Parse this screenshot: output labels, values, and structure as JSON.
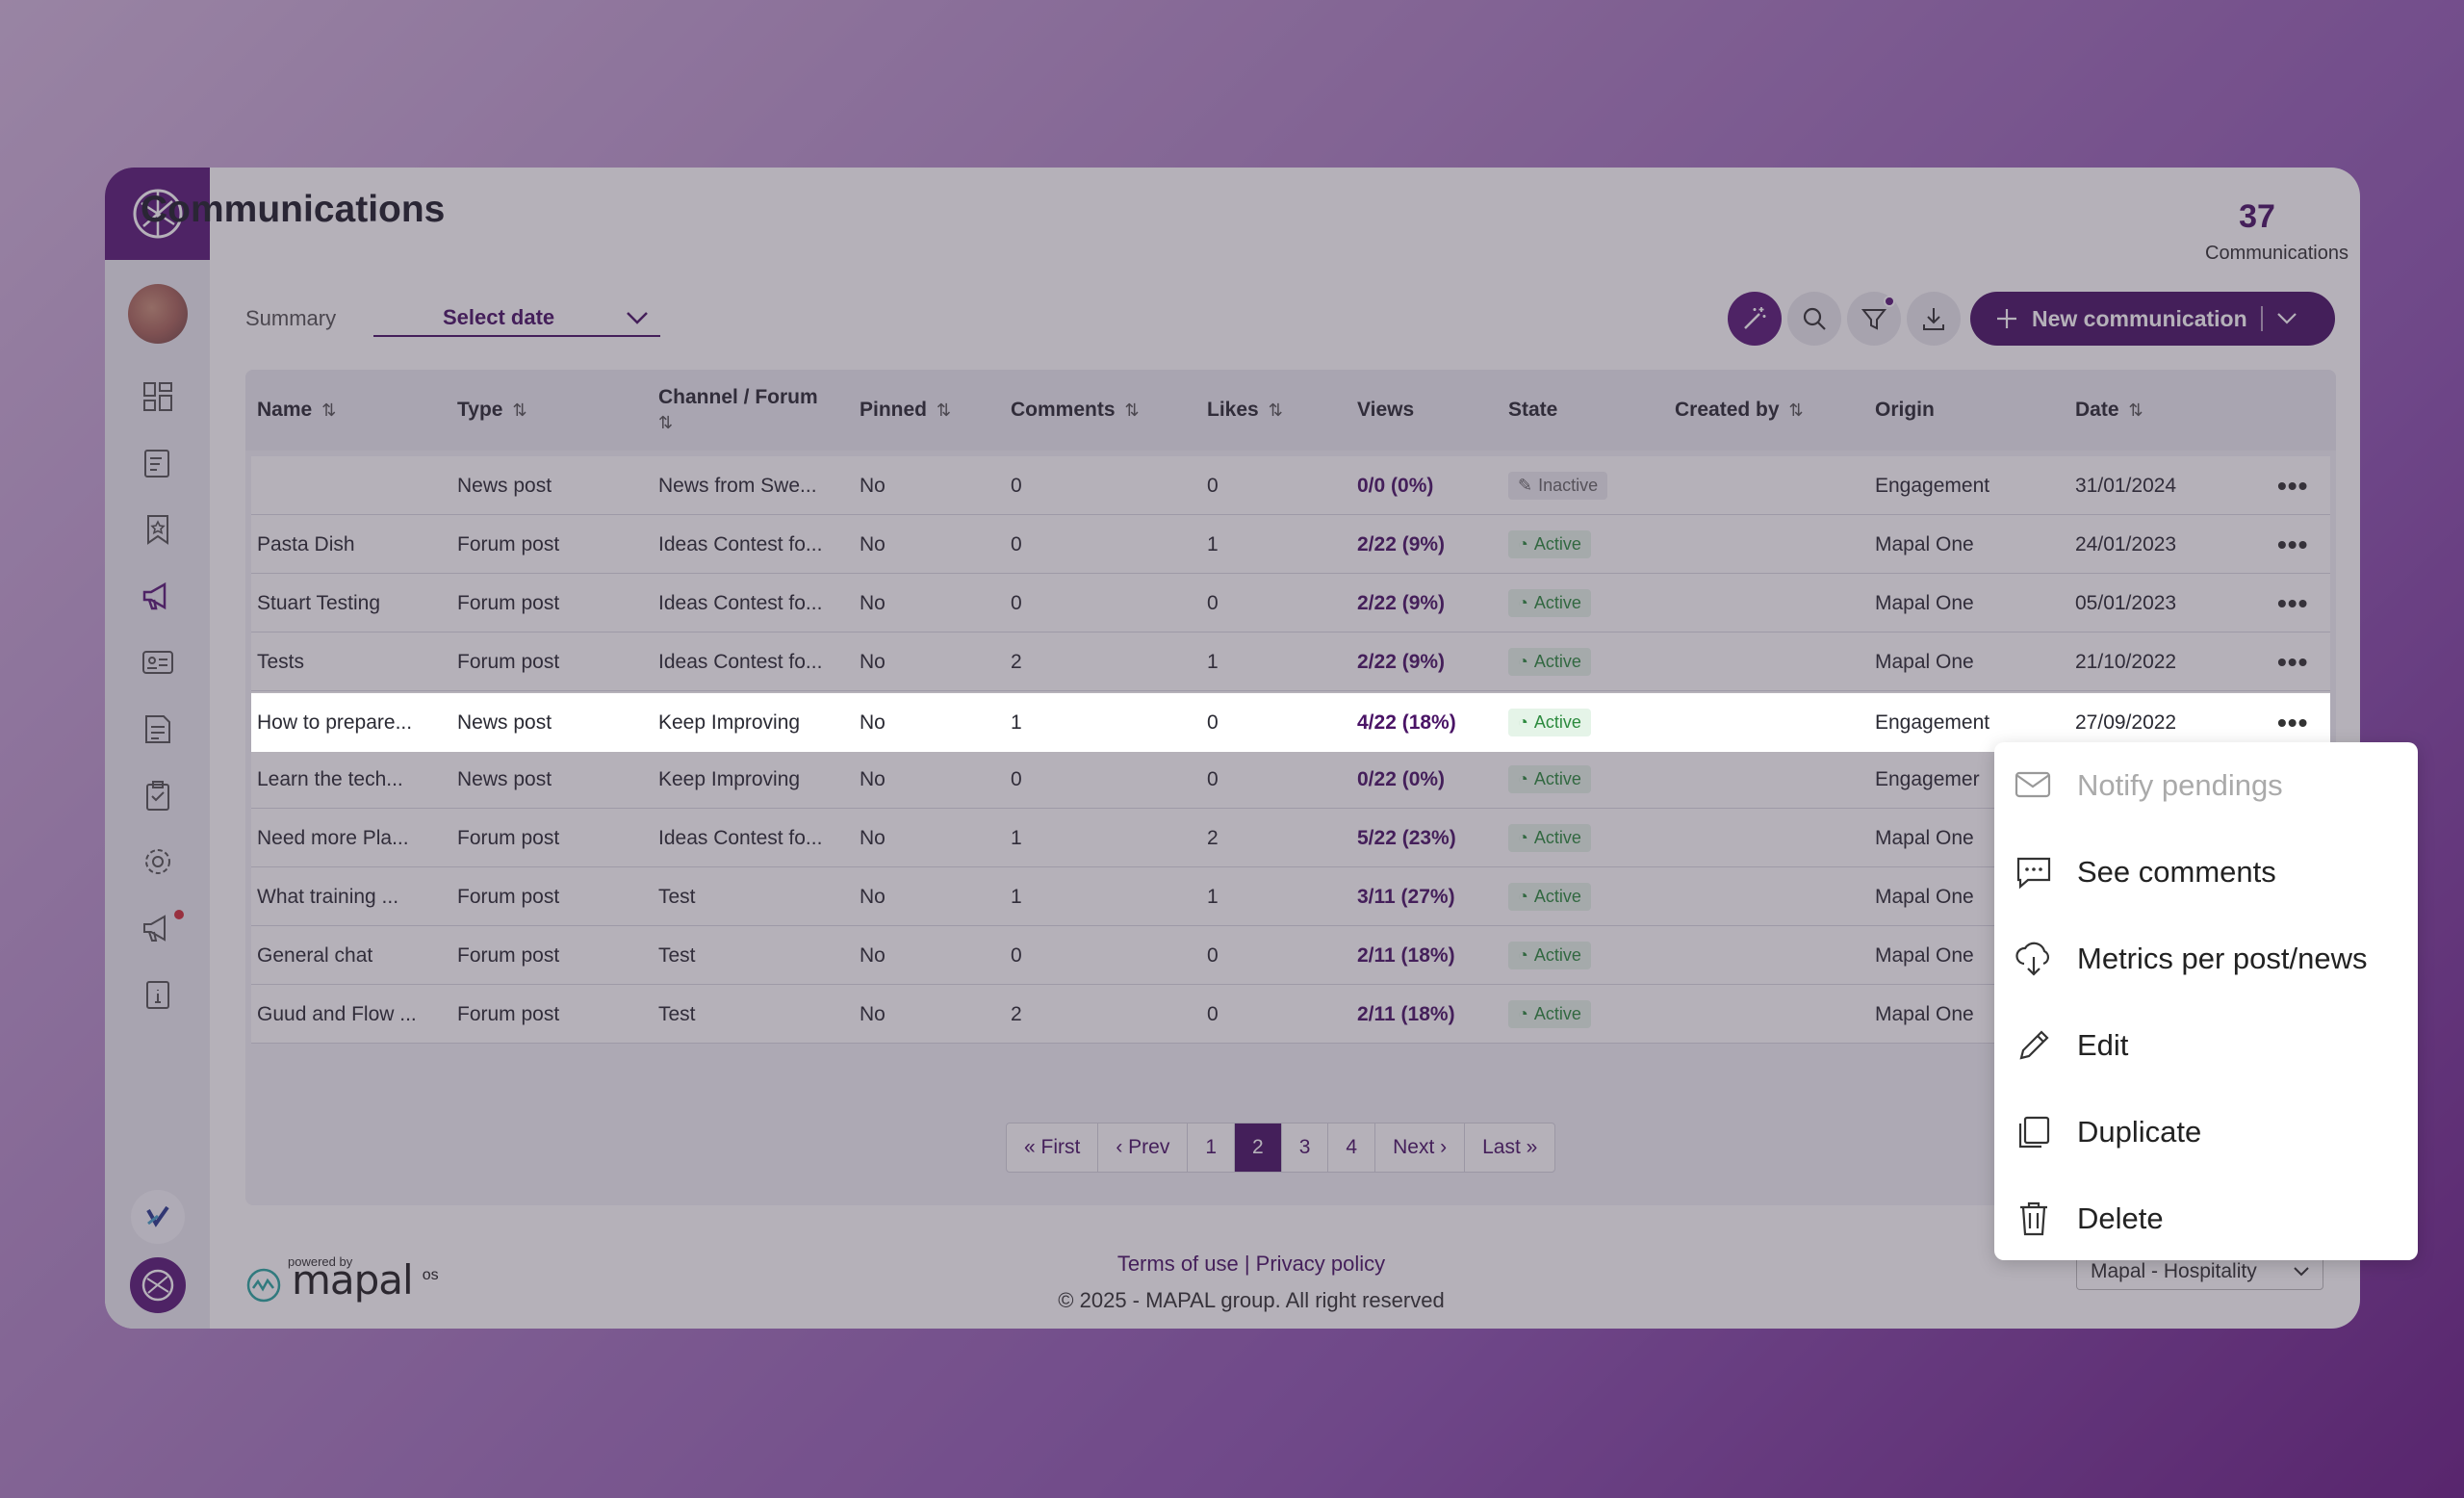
{
  "page": {
    "title": "Communications",
    "count": "37",
    "count_label": "Communications"
  },
  "filters": {
    "summary_label": "Summary",
    "date_select": "Select date"
  },
  "actions": {
    "new_communication": "New communication"
  },
  "table": {
    "headers": [
      "Name",
      "Type",
      "Channel / Forum",
      "Pinned",
      "Comments",
      "Likes",
      "Views",
      "State",
      "Created by",
      "Origin",
      "Date"
    ],
    "rows": [
      {
        "name": "",
        "type": "News post",
        "channel": "News from Swe...",
        "pinned": "No",
        "comments": "0",
        "likes": "0",
        "views": "0/0 (0%)",
        "state": "Inactive",
        "created_by": "",
        "origin": "Engagement",
        "date": "31/01/2024"
      },
      {
        "name": "Pasta Dish",
        "type": "Forum post",
        "channel": "Ideas Contest fo...",
        "pinned": "No",
        "comments": "0",
        "likes": "1",
        "views": "2/22 (9%)",
        "state": "Active",
        "created_by": "",
        "origin": "Mapal One",
        "date": "24/01/2023"
      },
      {
        "name": "Stuart Testing",
        "type": "Forum post",
        "channel": "Ideas Contest fo...",
        "pinned": "No",
        "comments": "0",
        "likes": "0",
        "views": "2/22 (9%)",
        "state": "Active",
        "created_by": "",
        "origin": "Mapal One",
        "date": "05/01/2023"
      },
      {
        "name": "Tests",
        "type": "Forum post",
        "channel": "Ideas Contest fo...",
        "pinned": "No",
        "comments": "2",
        "likes": "1",
        "views": "2/22 (9%)",
        "state": "Active",
        "created_by": "",
        "origin": "Mapal One",
        "date": "21/10/2022"
      },
      {
        "name": "How to prepare...",
        "type": "News post",
        "channel": "Keep Improving",
        "pinned": "No",
        "comments": "1",
        "likes": "0",
        "views": "4/22 (18%)",
        "state": "Active",
        "created_by": "",
        "origin": "Engagement",
        "date": "27/09/2022"
      },
      {
        "name": "Learn the tech...",
        "type": "News post",
        "channel": "Keep Improving",
        "pinned": "No",
        "comments": "0",
        "likes": "0",
        "views": "0/22 (0%)",
        "state": "Active",
        "created_by": "",
        "origin": "Engagemer",
        "date": ""
      },
      {
        "name": "Need more Pla...",
        "type": "Forum post",
        "channel": "Ideas Contest fo...",
        "pinned": "No",
        "comments": "1",
        "likes": "2",
        "views": "5/22 (23%)",
        "state": "Active",
        "created_by": "",
        "origin": "Mapal One",
        "date": ""
      },
      {
        "name": "What training ...",
        "type": "Forum post",
        "channel": "Test",
        "pinned": "No",
        "comments": "1",
        "likes": "1",
        "views": "3/11 (27%)",
        "state": "Active",
        "created_by": "",
        "origin": "Mapal One",
        "date": ""
      },
      {
        "name": "General chat",
        "type": "Forum post",
        "channel": "Test",
        "pinned": "No",
        "comments": "0",
        "likes": "0",
        "views": "2/11 (18%)",
        "state": "Active",
        "created_by": "",
        "origin": "Mapal One",
        "date": ""
      },
      {
        "name": "Guud and Flow ...",
        "type": "Forum post",
        "channel": "Test",
        "pinned": "No",
        "comments": "2",
        "likes": "0",
        "views": "2/11 (18%)",
        "state": "Active",
        "created_by": "",
        "origin": "Mapal One",
        "date": ""
      }
    ]
  },
  "pagination": {
    "items": [
      "« First",
      "‹ Prev",
      "1",
      "2",
      "3",
      "4",
      "Next ›",
      "Last »"
    ],
    "current": "2"
  },
  "context_menu": {
    "items": [
      {
        "label": "Notify pendings",
        "icon": "mail-icon",
        "disabled": true
      },
      {
        "label": "See comments",
        "icon": "comment-icon",
        "disabled": false
      },
      {
        "label": "Metrics per post/news",
        "icon": "cloud-download-icon",
        "disabled": false
      },
      {
        "label": "Edit",
        "icon": "pencil-icon",
        "disabled": false
      },
      {
        "label": "Duplicate",
        "icon": "duplicate-icon",
        "disabled": false
      },
      {
        "label": "Delete",
        "icon": "trash-icon",
        "disabled": false
      }
    ]
  },
  "footer": {
    "powered_by": "powered by",
    "brand": "mapal",
    "brand_suffix": "os",
    "links": "Terms of use | Privacy policy",
    "copyright": "© 2025 - MAPAL group. All right reserved",
    "org_select": "Mapal - Hospitality"
  },
  "colors": {
    "brand": "#4a1466",
    "active_green": "#2c8a3e",
    "background_gradient_end": "#6a1f86"
  }
}
